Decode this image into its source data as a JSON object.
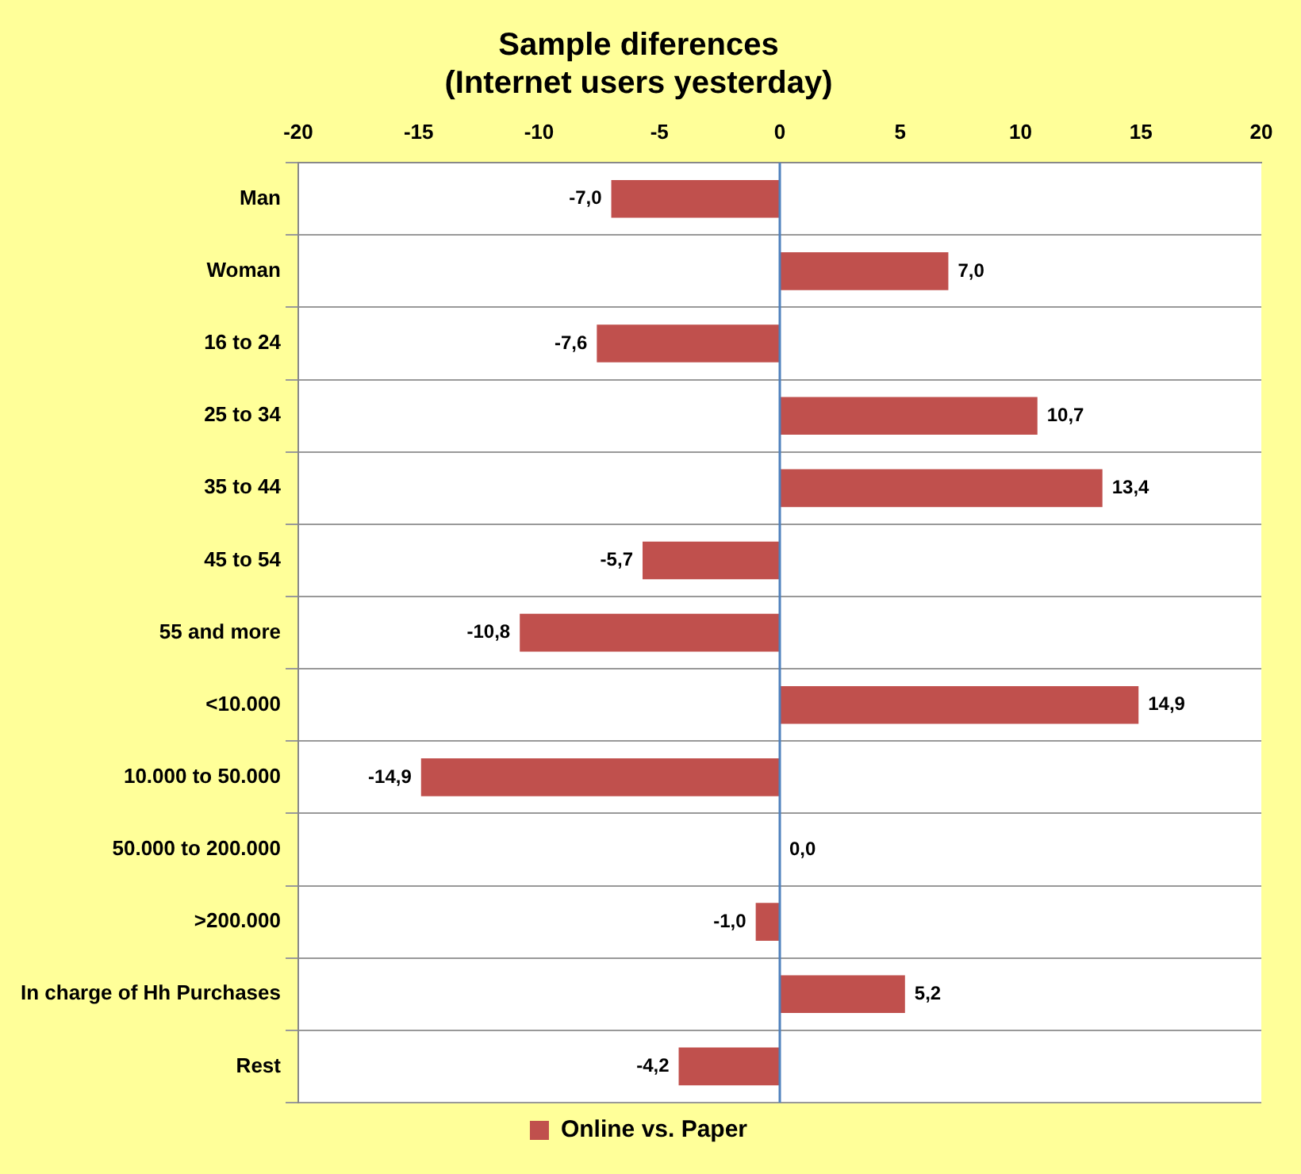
{
  "chart_data": {
    "type": "bar",
    "orientation": "horizontal",
    "title": "Sample diferences\n(Internet users yesterday)",
    "categories": [
      "Man",
      "Woman",
      "16 to 24",
      "25 to 34",
      "35 to 44",
      "45 to 54",
      "55 and more",
      "<10.000",
      "10.000 to 50.000",
      "50.000 to 200.000",
      ">200.000",
      "In charge of Hh Purchases",
      "Rest"
    ],
    "series": [
      {
        "name": "Online vs. Paper",
        "color": "#c0504d",
        "values": [
          -7.0,
          7.0,
          -7.6,
          10.7,
          13.4,
          -5.7,
          -10.8,
          14.9,
          -14.9,
          0.0,
          -1.0,
          5.2,
          -4.2
        ],
        "value_labels": [
          "-7,0",
          "7,0",
          "-7,6",
          "10,7",
          "13,4",
          "-5,7",
          "-10,8",
          "14,9",
          "-14,9",
          "0,0",
          "-1,0",
          "5,2",
          "-4,2"
        ]
      }
    ],
    "xlim": [
      -20,
      20
    ],
    "xticks": [
      -20,
      -15,
      -10,
      -5,
      0,
      5,
      10,
      15,
      20
    ],
    "grid": "y",
    "legend": "bottom",
    "ref_lines": [
      {
        "axis": "x",
        "value": 0,
        "color": "#4f81bd"
      }
    ]
  }
}
